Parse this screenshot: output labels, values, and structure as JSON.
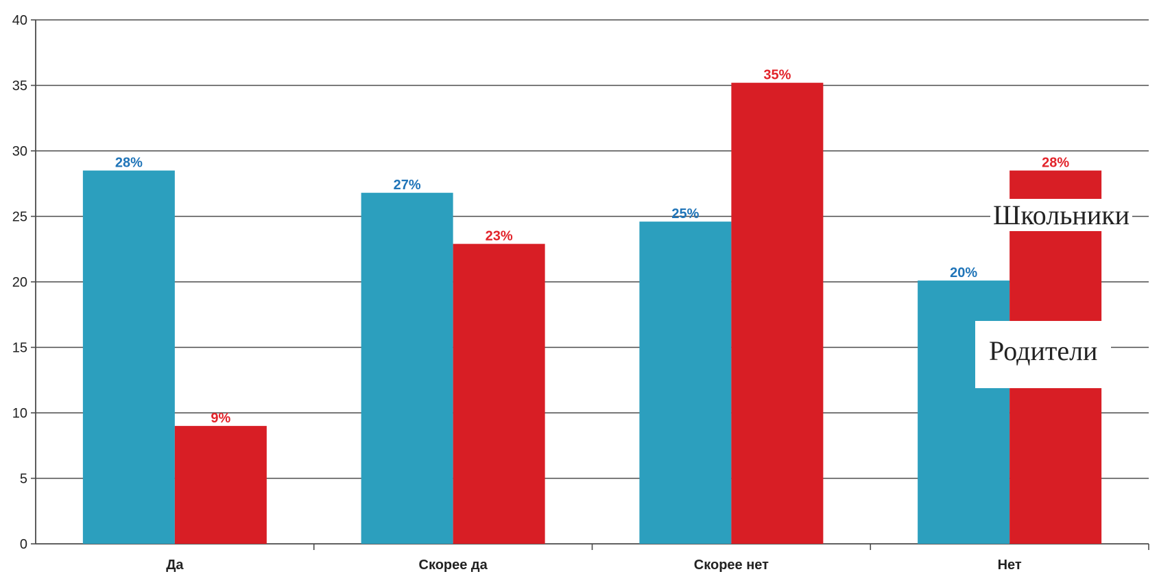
{
  "chart_data": {
    "type": "bar",
    "title": "",
    "xlabel": "",
    "ylabel": "",
    "ylim": [
      0,
      40
    ],
    "yticks": [
      0,
      5,
      10,
      15,
      20,
      25,
      30,
      35,
      40
    ],
    "grid": true,
    "categories": [
      "Да",
      "Скорее да",
      "Скорее нет",
      "Нет"
    ],
    "series": [
      {
        "name": "Школьники",
        "color": "#2c9fbe",
        "label_color": "#1f74b8",
        "values": [
          28.5,
          26.8,
          24.6,
          20.1
        ],
        "labels": [
          "28%",
          "27%",
          "25%",
          "20%"
        ]
      },
      {
        "name": "Родители",
        "color": "#d81e25",
        "label_color": "#e2232a",
        "values": [
          9.0,
          22.9,
          35.2,
          28.5
        ],
        "labels": [
          "9%",
          "23%",
          "35%",
          "28%"
        ]
      }
    ],
    "legend": {
      "placement": "right",
      "items": [
        "Школьники",
        "Родители"
      ]
    }
  }
}
